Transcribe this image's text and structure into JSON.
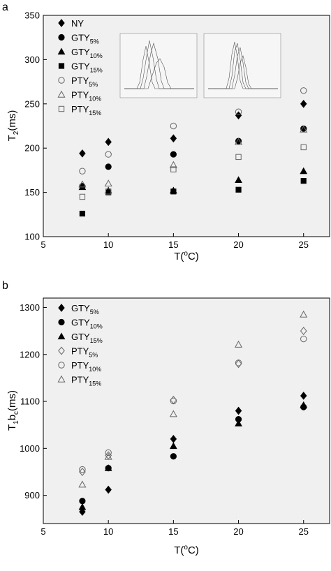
{
  "chart_data": [
    {
      "panel": "a",
      "type": "scatter",
      "xlabel_main": "T(",
      "xlabel_sup": "o",
      "xlabel_end": "C)",
      "ylabel_main": "T",
      "ylabel_sub": "2",
      "ylabel_end": "(ms)",
      "xlim": [
        5,
        27
      ],
      "ylim": [
        100,
        350
      ],
      "xticks": [
        5,
        10,
        15,
        20,
        25
      ],
      "yticks": [
        100,
        150,
        200,
        250,
        300,
        350
      ],
      "x": [
        8,
        10,
        15,
        20,
        25
      ],
      "legend_position": "top-left",
      "series": [
        {
          "name": "NY",
          "name_sub": "",
          "marker": "diamond-filled",
          "values": [
            194,
            207,
            211,
            237,
            250
          ]
        },
        {
          "name": "GTY",
          "name_sub": "5%",
          "marker": "circle-filled",
          "values": [
            157,
            179,
            193,
            208,
            222
          ]
        },
        {
          "name": "GTY",
          "name_sub": "10%",
          "marker": "triangle-filled",
          "values": [
            156,
            152,
            152,
            164,
            174
          ]
        },
        {
          "name": "GTY",
          "name_sub": "15%",
          "marker": "square-filled",
          "values": [
            126,
            150,
            151,
            153,
            163
          ]
        },
        {
          "name": "PTY",
          "name_sub": "5%",
          "marker": "circle-open",
          "values": [
            174,
            193,
            225,
            241,
            265
          ]
        },
        {
          "name": "PTY",
          "name_sub": "10%",
          "marker": "triangle-open",
          "values": [
            159,
            160,
            181,
            207,
            221
          ]
        },
        {
          "name": "PTY",
          "name_sub": "15%",
          "marker": "square-open",
          "values": [
            145,
            151,
            176,
            190,
            201
          ]
        }
      ]
    },
    {
      "panel": "b",
      "type": "scatter",
      "xlabel_main": "T(",
      "xlabel_sup": "o",
      "xlabel_end": "C)",
      "ylabel_main": "T",
      "ylabel_sub": "1",
      "ylabel_mid": "b",
      "ylabel_sub2": "c",
      "ylabel_end": "(ms)",
      "xlim": [
        5,
        27
      ],
      "ylim": [
        840,
        1320
      ],
      "xticks": [
        5,
        10,
        15,
        20,
        25
      ],
      "yticks": [
        900,
        1000,
        1100,
        1200,
        1300
      ],
      "x": [
        8,
        10,
        15,
        20,
        25
      ],
      "legend_position": "top-left",
      "series": [
        {
          "name": "GTY",
          "name_sub": "5%",
          "marker": "diamond-filled",
          "values": [
            865,
            912,
            1020,
            1080,
            1112
          ]
        },
        {
          "name": "GTY",
          "name_sub": "10%",
          "marker": "circle-filled",
          "values": [
            888,
            958,
            983,
            1062,
            1088
          ]
        },
        {
          "name": "GTY",
          "name_sub": "15%",
          "marker": "triangle-filled",
          "values": [
            875,
            958,
            1005,
            1053,
            1092
          ]
        },
        {
          "name": "PTY",
          "name_sub": "5%",
          "marker": "diamond-open",
          "values": [
            950,
            985,
            1103,
            1180,
            1250
          ]
        },
        {
          "name": "PTY",
          "name_sub": "10%",
          "marker": "circle-open",
          "values": [
            955,
            991,
            1101,
            1182,
            1233
          ]
        },
        {
          "name": "PTY",
          "name_sub": "15%",
          "marker": "triangle-open",
          "values": [
            923,
            982,
            1073,
            1221,
            1285
          ]
        }
      ]
    }
  ]
}
